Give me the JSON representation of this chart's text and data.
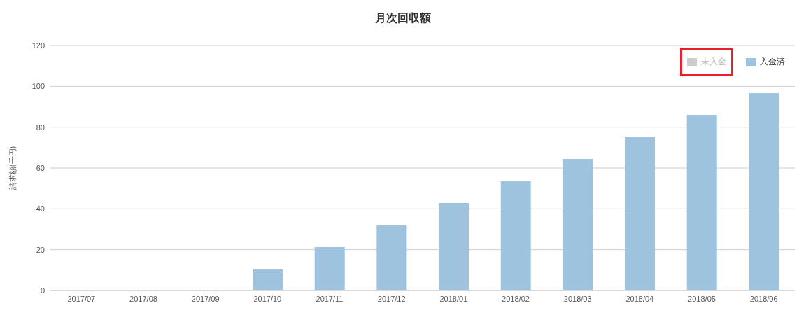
{
  "chart_data": {
    "type": "bar",
    "title": "月次回収額",
    "ylabel": "請求額(千円)",
    "categories": [
      "2017/07",
      "2017/08",
      "2017/09",
      "2017/10",
      "2017/11",
      "2017/12",
      "2018/01",
      "2018/02",
      "2018/03",
      "2018/04",
      "2018/05",
      "2018/06"
    ],
    "series": [
      {
        "name": "未入金",
        "color": "#cccccc",
        "values": [
          null,
          null,
          null,
          null,
          null,
          null,
          null,
          null,
          null,
          null,
          null,
          null
        ]
      },
      {
        "name": "入金済",
        "color": "#9dc3df",
        "values": [
          0,
          0,
          0,
          10.3,
          21.3,
          31.9,
          42.9,
          53.5,
          64.5,
          75.1,
          86.1,
          96.7
        ]
      }
    ],
    "stacked": true,
    "ylim": [
      0,
      120
    ],
    "yticks": [
      0,
      20,
      40,
      60,
      80,
      100,
      120
    ],
    "grid": "y",
    "legend": "top right"
  }
}
